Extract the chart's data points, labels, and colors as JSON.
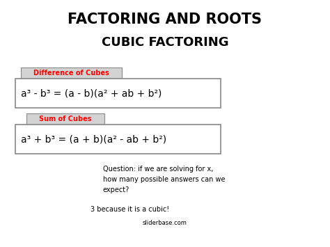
{
  "title_line1": "FACTORING AND ROOTS",
  "title_line2": "CUBIC FACTORING",
  "label1": "Difference of Cubes",
  "formula1": "a³ - b³ = (a - b)(a² + ab + b²)",
  "label2": "Sum of Cubes",
  "formula2": "a³ + b³ = (a + b)(a² - ab + b²)",
  "question": "Question: if we are solving for x,\nhow many possible answers can we\nexpect?",
  "answer": "3 because it is a cubic!",
  "watermark": "sliderbase.com",
  "bg_color": "#ffffff",
  "title_color": "#000000",
  "label_color": "#ff0000",
  "label_bg": "#d3d3d3",
  "formula_color": "#000000",
  "box_edge_color": "#888888",
  "question_color": "#000000",
  "answer_color": "#000000",
  "watermark_color": "#000000",
  "title1_fontsize": 15,
  "title2_fontsize": 13,
  "label_fontsize": 7,
  "formula_fontsize": 10,
  "question_fontsize": 7,
  "answer_fontsize": 7,
  "watermark_fontsize": 6
}
